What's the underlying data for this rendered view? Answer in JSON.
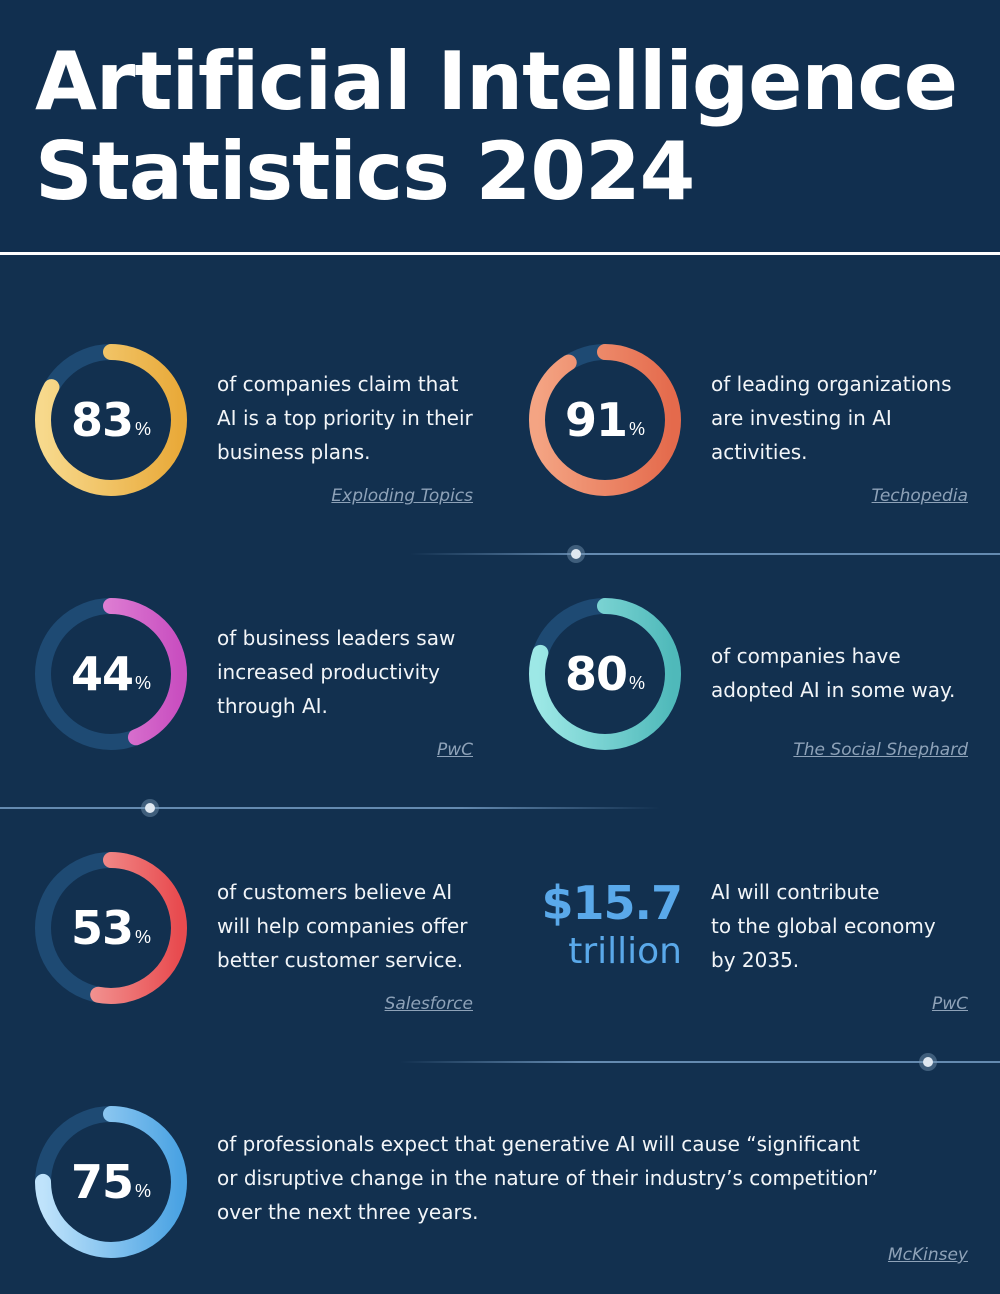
{
  "title": {
    "line1": "Artificial Intelligence",
    "line2": "Statistics 2024"
  },
  "colors": {
    "background": "#12304f",
    "ring_track": "#1e4a73",
    "yellow": [
      "#f7d98c",
      "#e9aa3a"
    ],
    "orange": [
      "#f4a483",
      "#e46a4c"
    ],
    "pink": [
      "#eea4e2",
      "#c94fc0"
    ],
    "teal": [
      "#9de8e6",
      "#4fb9ba"
    ],
    "red": [
      "#f7b8b3",
      "#e84b4f"
    ],
    "blue": [
      "#bfe3fb",
      "#4ba3e3"
    ],
    "money": "#5aa9ea"
  },
  "stats": [
    {
      "value": "83",
      "unit": "%",
      "fraction": 0.83,
      "color": "yellow",
      "text": [
        "of companies claim that",
        "AI is a top priority in their",
        "business plans."
      ],
      "source": "Exploding Topics"
    },
    {
      "value": "91",
      "unit": "%",
      "fraction": 0.91,
      "color": "orange",
      "text": [
        "of leading organizations",
        "are investing in AI",
        "activities."
      ],
      "source": "Techopedia"
    },
    {
      "value": "44",
      "unit": "%",
      "fraction": 0.44,
      "color": "pink",
      "text": [
        "of business leaders saw",
        "increased productivity",
        "through AI."
      ],
      "source": "PwC"
    },
    {
      "value": "80",
      "unit": "%",
      "fraction": 0.8,
      "color": "teal",
      "text": [
        "of companies have",
        "adopted AI in some way."
      ],
      "source": "The Social Shephard"
    },
    {
      "value": "53",
      "unit": "%",
      "fraction": 0.53,
      "color": "red",
      "text": [
        "of customers believe AI",
        "will help companies offer",
        "better customer service."
      ],
      "source": "Salesforce"
    },
    {
      "value": "75",
      "unit": "%",
      "fraction": 0.75,
      "color": "blue",
      "text": [
        "of professionals expect that generative AI will cause “significant",
        "or disruptive change in the nature of their industry’s competition”",
        "over the next three years."
      ],
      "source": "McKinsey"
    }
  ],
  "economy": {
    "amount": "$15.7",
    "unit": "trillion",
    "text": [
      "AI will contribute",
      "to the global economy",
      "by 2035."
    ],
    "source": "PwC"
  }
}
